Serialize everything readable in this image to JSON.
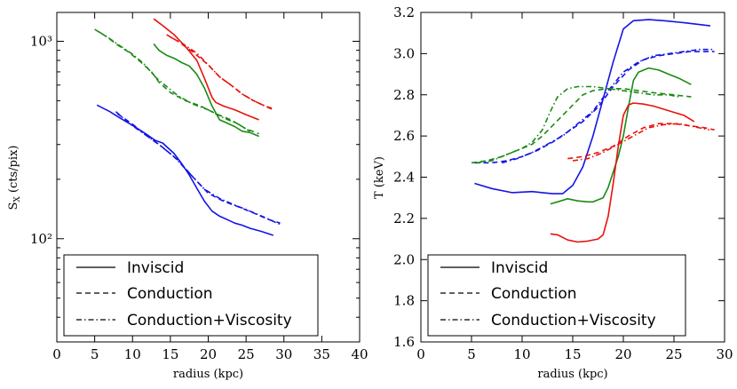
{
  "chart_data": [
    {
      "type": "line",
      "title": "",
      "xlabel": "radius (kpc)",
      "ylabel": "S_X (cts/pix)",
      "xlim": [
        0,
        40
      ],
      "ylim": [
        30,
        1400
      ],
      "yscale": "log",
      "xticks": [
        0,
        5,
        10,
        15,
        20,
        25,
        30,
        35,
        40
      ],
      "yticks_major": [
        100,
        1000
      ],
      "ytick_labels": [
        "10²",
        "10³"
      ],
      "legend": {
        "location": "lower-left",
        "entries": [
          {
            "label": "Inviscid",
            "style": "solid"
          },
          {
            "label": "Conduction",
            "style": "dashed"
          },
          {
            "label": "Conduction+Viscosity",
            "style": "dashdot"
          }
        ]
      },
      "series": [
        {
          "name": "Inviscid (red)",
          "color": "#e8120c",
          "style": "solid",
          "x": [
            12.8,
            14.0,
            15.5,
            17.0,
            18.5,
            19.5,
            20.5,
            21.0,
            22.0,
            23.5,
            25.0,
            26.7
          ],
          "y": [
            1300,
            1200,
            1080,
            940,
            800,
            650,
            520,
            490,
            470,
            450,
            425,
            400
          ]
        },
        {
          "name": "Conduction (red)",
          "color": "#e8120c",
          "style": "dashed",
          "x": [
            14.5,
            16.0,
            18.0,
            20.0,
            21.5,
            23.0,
            24.5,
            26.0,
            27.5,
            28.6
          ],
          "y": [
            1080,
            1000,
            880,
            760,
            660,
            600,
            540,
            500,
            470,
            450
          ]
        },
        {
          "name": "Conduction+Viscosity (red)",
          "color": "#e8120c",
          "style": "dashdot",
          "x": [
            15.0,
            16.5,
            18.5,
            20.0,
            21.5,
            23.0,
            24.5,
            26.0,
            27.5,
            28.6
          ],
          "y": [
            1050,
            980,
            870,
            760,
            660,
            600,
            540,
            500,
            470,
            455
          ]
        },
        {
          "name": "Inviscid (green)",
          "color": "#1a8a12",
          "style": "solid",
          "x": [
            12.8,
            13.5,
            14.5,
            15.5,
            16.5,
            17.5,
            18.5,
            19.5,
            20.5,
            21.5,
            22.5,
            23.5,
            24.5,
            25.5,
            26.7
          ],
          "y": [
            970,
            900,
            850,
            820,
            780,
            750,
            680,
            580,
            470,
            400,
            385,
            370,
            350,
            345,
            330
          ]
        },
        {
          "name": "Conduction (green)",
          "color": "#1a8a12",
          "style": "dashed",
          "x": [
            5.0,
            6.5,
            8.0,
            9.5,
            11.0,
            12.5,
            13.5,
            15.0,
            17.0,
            19.0,
            21.0,
            23.0,
            25.0,
            26.7
          ],
          "y": [
            1150,
            1060,
            960,
            880,
            790,
            700,
            620,
            550,
            500,
            470,
            430,
            400,
            360,
            340
          ]
        },
        {
          "name": "Conduction+Viscosity (green)",
          "color": "#1a8a12",
          "style": "dashdot",
          "x": [
            5.5,
            7.0,
            8.5,
            10.0,
            11.5,
            13.0,
            14.5,
            16.0,
            18.0,
            20.0,
            22.0,
            24.0,
            25.5
          ],
          "y": [
            1120,
            1030,
            940,
            860,
            770,
            660,
            590,
            530,
            480,
            450,
            410,
            380,
            350
          ]
        },
        {
          "name": "Inviscid (blue)",
          "color": "#1414e6",
          "style": "solid",
          "x": [
            5.3,
            7.0,
            8.5,
            10.0,
            11.0,
            12.0,
            13.0,
            14.0,
            15.5,
            16.5,
            17.5,
            18.5,
            19.5,
            20.5,
            21.5,
            22.5,
            23.5,
            24.5,
            25.5,
            27.0,
            28.6
          ],
          "y": [
            475,
            440,
            405,
            375,
            355,
            335,
            315,
            305,
            270,
            240,
            210,
            180,
            155,
            138,
            130,
            125,
            120,
            117,
            113,
            109,
            104
          ]
        },
        {
          "name": "Conduction (blue)",
          "color": "#1414e6",
          "style": "dashed",
          "x": [
            8.0,
            10.0,
            12.0,
            14.0,
            16.0,
            18.0,
            20.0,
            22.0,
            24.0,
            26.0,
            28.0,
            29.5
          ],
          "y": [
            430,
            380,
            330,
            290,
            250,
            205,
            170,
            155,
            145,
            135,
            125,
            120
          ]
        },
        {
          "name": "Conduction+Viscosity (blue)",
          "color": "#1414e6",
          "style": "dashdot",
          "x": [
            7.8,
            9.5,
            11.5,
            13.5,
            15.5,
            17.5,
            19.5,
            21.5,
            23.5,
            25.5,
            27.5,
            29.5
          ],
          "y": [
            440,
            385,
            340,
            300,
            260,
            215,
            178,
            160,
            148,
            138,
            128,
            118
          ]
        }
      ]
    },
    {
      "type": "line",
      "title": "",
      "xlabel": "radius (kpc)",
      "ylabel": "T (keV)",
      "xlim": [
        0,
        30
      ],
      "ylim": [
        1.6,
        3.2
      ],
      "yscale": "linear",
      "xticks": [
        0,
        5,
        10,
        15,
        20,
        25,
        30
      ],
      "yticks": [
        1.6,
        1.8,
        2.0,
        2.2,
        2.4,
        2.6,
        2.8,
        3.0,
        3.2
      ],
      "ytick_labels": [
        "1.6",
        "1.8",
        "2.0",
        "2.2",
        "2.4",
        "2.6",
        "2.8",
        "3.0",
        "3.2"
      ],
      "legend": {
        "location": "lower-left",
        "entries": [
          {
            "label": "Inviscid",
            "style": "solid"
          },
          {
            "label": "Conduction",
            "style": "dashed"
          },
          {
            "label": "Conduction+Viscosity",
            "style": "dashdot"
          }
        ]
      },
      "series": [
        {
          "name": "Inviscid (blue)",
          "color": "#1414e6",
          "style": "solid",
          "x": [
            5.3,
            7.0,
            9.0,
            11.0,
            12.0,
            13.0,
            14.0,
            15.0,
            16.0,
            17.0,
            18.0,
            19.0,
            20.0,
            21.0,
            22.5,
            24.0,
            26.0,
            28.6
          ],
          "y": [
            2.37,
            2.345,
            2.325,
            2.33,
            2.325,
            2.32,
            2.32,
            2.36,
            2.45,
            2.6,
            2.78,
            2.96,
            3.12,
            3.16,
            3.165,
            3.16,
            3.15,
            3.135
          ]
        },
        {
          "name": "Conduction (blue)",
          "color": "#1414e6",
          "style": "dashed",
          "x": [
            5.3,
            7.0,
            8.5,
            10.0,
            11.5,
            13.0,
            14.5,
            16.0,
            17.5,
            19.0,
            20.5,
            22.0,
            23.5,
            25.0,
            26.5,
            28.0,
            29.0
          ],
          "y": [
            2.47,
            2.47,
            2.48,
            2.5,
            2.53,
            2.57,
            2.62,
            2.67,
            2.74,
            2.84,
            2.92,
            2.97,
            2.99,
            3.0,
            3.01,
            3.01,
            3.01
          ]
        },
        {
          "name": "Conduction+Viscosity (blue)",
          "color": "#1414e6",
          "style": "dashdot",
          "x": [
            8.0,
            9.5,
            11.0,
            12.5,
            14.0,
            15.5,
            17.0,
            18.5,
            20.0,
            21.5,
            23.0,
            24.5,
            26.0,
            27.5,
            29.0
          ],
          "y": [
            2.47,
            2.49,
            2.52,
            2.56,
            2.6,
            2.66,
            2.72,
            2.82,
            2.91,
            2.96,
            2.99,
            3.0,
            3.01,
            3.02,
            3.02
          ]
        },
        {
          "name": "Inviscid (green)",
          "color": "#1a8a12",
          "style": "solid",
          "x": [
            12.8,
            13.5,
            14.5,
            15.5,
            16.5,
            17.0,
            17.5,
            18.0,
            18.5,
            19.5,
            20.0,
            20.5,
            21.0,
            21.5,
            22.5,
            23.5,
            24.5,
            25.5,
            26.7
          ],
          "y": [
            2.27,
            2.28,
            2.295,
            2.285,
            2.28,
            2.28,
            2.29,
            2.3,
            2.35,
            2.5,
            2.6,
            2.74,
            2.87,
            2.91,
            2.93,
            2.92,
            2.9,
            2.88,
            2.85
          ]
        },
        {
          "name": "Conduction (green)",
          "color": "#1a8a12",
          "style": "dashed",
          "x": [
            5.0,
            6.5,
            8.0,
            9.5,
            11.0,
            12.0,
            13.0,
            14.0,
            15.0,
            16.0,
            17.0,
            18.5,
            20.0,
            21.5,
            23.0,
            25.0,
            26.7
          ],
          "y": [
            2.47,
            2.48,
            2.5,
            2.53,
            2.56,
            2.6,
            2.65,
            2.7,
            2.75,
            2.8,
            2.82,
            2.83,
            2.83,
            2.82,
            2.81,
            2.8,
            2.79
          ]
        },
        {
          "name": "Conduction+Viscosity (green)",
          "color": "#1a8a12",
          "style": "dashdot",
          "x": [
            5.5,
            7.0,
            8.5,
            10.0,
            11.0,
            12.0,
            12.8,
            13.5,
            14.5,
            15.5,
            17.0,
            18.5,
            20.0,
            21.5,
            23.0,
            24.5,
            25.5
          ],
          "y": [
            2.47,
            2.48,
            2.51,
            2.54,
            2.57,
            2.63,
            2.72,
            2.79,
            2.83,
            2.84,
            2.84,
            2.83,
            2.82,
            2.81,
            2.8,
            2.8,
            2.79
          ]
        },
        {
          "name": "Inviscid (red)",
          "color": "#e8120c",
          "style": "solid",
          "x": [
            12.8,
            13.5,
            14.5,
            15.5,
            16.5,
            17.5,
            18.0,
            18.5,
            19.0,
            19.5,
            20.0,
            20.5,
            21.0,
            22.0,
            23.0,
            24.0,
            25.0,
            26.0,
            27.0
          ],
          "y": [
            2.125,
            2.12,
            2.095,
            2.085,
            2.09,
            2.1,
            2.12,
            2.21,
            2.37,
            2.55,
            2.7,
            2.75,
            2.76,
            2.755,
            2.745,
            2.73,
            2.715,
            2.7,
            2.67
          ]
        },
        {
          "name": "Conduction (red)",
          "color": "#e8120c",
          "style": "dashed",
          "x": [
            14.5,
            16.0,
            17.5,
            19.0,
            20.5,
            22.0,
            23.5,
            25.0,
            26.5,
            28.0,
            29.0
          ],
          "y": [
            2.49,
            2.5,
            2.52,
            2.55,
            2.6,
            2.64,
            2.66,
            2.66,
            2.65,
            2.64,
            2.63
          ]
        },
        {
          "name": "Conduction+Viscosity (red)",
          "color": "#e8120c",
          "style": "dashdot",
          "x": [
            15.0,
            16.5,
            18.0,
            19.5,
            21.0,
            22.5,
            24.0,
            25.5,
            27.0,
            28.5
          ],
          "y": [
            2.48,
            2.49,
            2.52,
            2.56,
            2.6,
            2.64,
            2.655,
            2.66,
            2.645,
            2.63
          ]
        }
      ]
    }
  ]
}
